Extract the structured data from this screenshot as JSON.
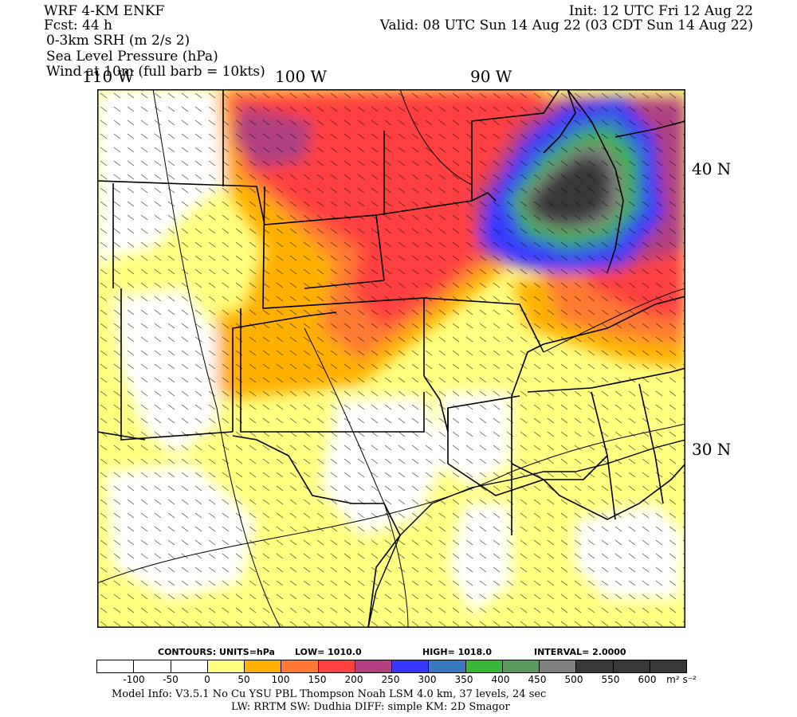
{
  "header": {
    "model": "WRF 4-KM ENKF",
    "fcst": "Fcst:   44 h",
    "init": "Init: 12 UTC Fri 12 Aug 22",
    "valid": "Valid: 08 UTC Sun 14 Aug 22 (03 CDT Sun 14 Aug 22)",
    "field1": "0-3km SRH (m 2/s 2)",
    "field2": "Sea Level Pressure (hPa)",
    "field3": "Wind at 10m (full barb = 10kts)"
  },
  "map_labels": {
    "lon_110": "110 W",
    "lon_100": "100 W",
    "lon_90": "90 W",
    "lat_40": "40 N",
    "lat_30": "30 N"
  },
  "contours": {
    "units": "CONTOURS:   UNITS=hPa",
    "low": "LOW=    1010.0",
    "high": "HIGH=    1018.0",
    "interval": "INTERVAL=     2.0000"
  },
  "colorbar": {
    "colors": [
      "#ffffff",
      "#ffffff",
      "#ffffff",
      "#ffff80",
      "#ffb000",
      "#ff7a30",
      "#ff4040",
      "#b04080",
      "#3838ff",
      "#3878c0",
      "#38b838",
      "#5a9a5a",
      "#808080",
      "#383838",
      "#383838",
      "#383838"
    ],
    "ticks": [
      "-100",
      "-50",
      "0",
      "50",
      "100",
      "150",
      "200",
      "250",
      "300",
      "350",
      "400",
      "450",
      "500",
      "550",
      "600"
    ],
    "units": "m² s⁻²"
  },
  "footer": {
    "line1": "Model Info: V3.5.1    No Cu    YSU PBL   Thompson      Noah LSM   4.0 km,   37 levels,    24 sec",
    "line2": "LW: RRTM  SW: Dudhia   DIFF: simple  KM: 2D Smagor"
  }
}
